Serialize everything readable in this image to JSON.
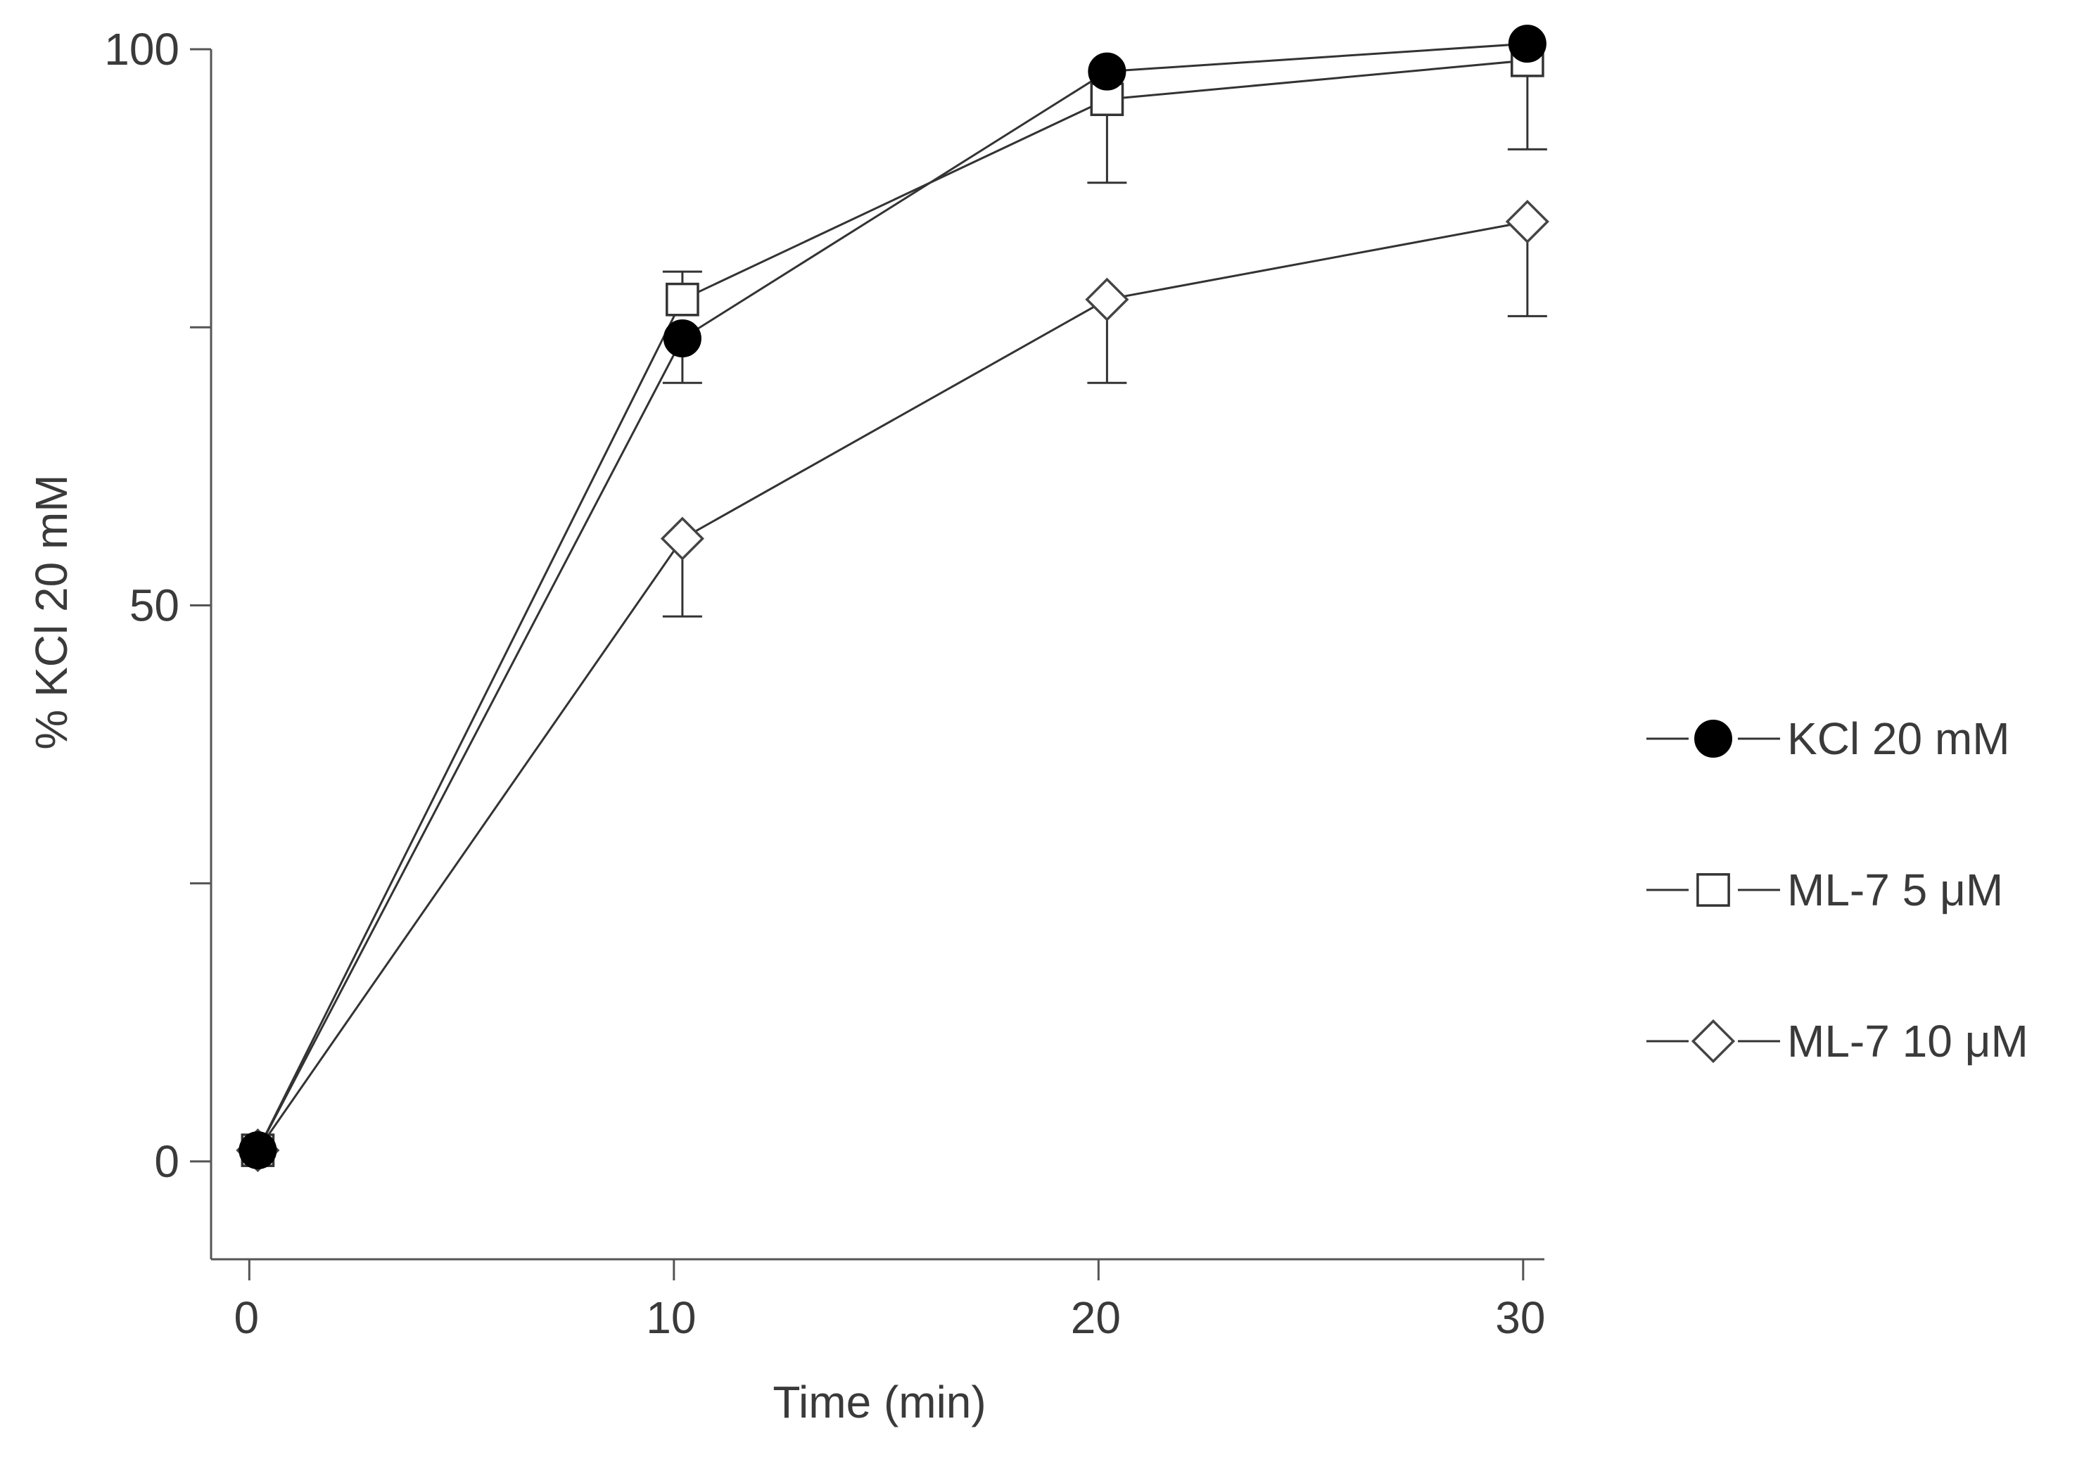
{
  "chart_data": {
    "type": "line",
    "title": "",
    "xlabel": "Time (min)",
    "ylabel": "% KCl 20 mM",
    "x": [
      0,
      10,
      20,
      30
    ],
    "x_ticks": [
      0,
      10,
      20,
      30
    ],
    "x_tick_labels": [
      "0",
      "10",
      "20",
      "30"
    ],
    "xlim": [
      -0.9,
      30.5
    ],
    "y_ticks": [
      0,
      25,
      50,
      75,
      100
    ],
    "y_tick_labels": [
      "0",
      "",
      "50",
      "",
      "100"
    ],
    "ylim": [
      -8.8,
      100
    ],
    "grid": false,
    "legend_position": "right",
    "series": [
      {
        "name": "KCl 20 mM",
        "marker": "filled-circle",
        "color": "#000000",
        "x": [
          0.2,
          10.2,
          20.2,
          30.1
        ],
        "values": [
          1,
          74,
          98,
          100.5
        ],
        "error_plus": [
          0,
          0,
          0,
          0
        ],
        "error_minus": [
          0,
          4,
          0,
          0
        ]
      },
      {
        "name": "ML-7 5 μM",
        "marker": "open-square",
        "color": "#000000",
        "x": [
          0.2,
          10.2,
          20.2,
          30.1
        ],
        "values": [
          1,
          77.5,
          95.5,
          99
        ],
        "error_plus": [
          0,
          2.5,
          0,
          0
        ],
        "error_minus": [
          0,
          0,
          7.5,
          8
        ]
      },
      {
        "name": "ML-7 10 μM",
        "marker": "open-diamond",
        "color": "#000000",
        "x": [
          0.2,
          10.2,
          20.2,
          30.1
        ],
        "values": [
          1,
          56,
          77.5,
          84.5
        ],
        "error_plus": [
          0,
          0,
          0,
          0
        ],
        "error_minus": [
          0,
          7,
          7.5,
          8.5
        ]
      }
    ]
  }
}
